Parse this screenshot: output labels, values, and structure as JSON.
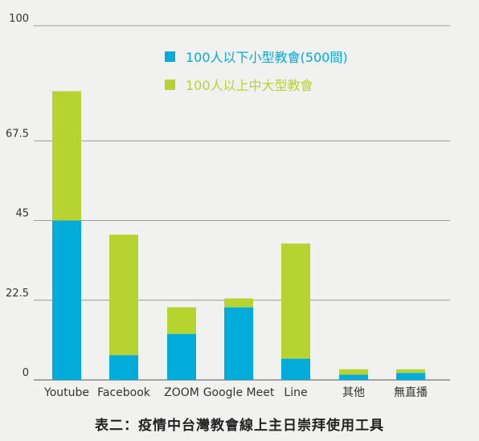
{
  "caption": "表二：疫情中台灣教會線上主日崇拜使用工具",
  "chart_data": {
    "type": "bar",
    "stacked": true,
    "categories": [
      "Youtube",
      "Facebook",
      "ZOOM",
      "Google Meet",
      "Line",
      "其他",
      "無直播"
    ],
    "ylim": [
      0,
      100
    ],
    "yticks": [
      "0",
      "22.5",
      "45",
      "67.5",
      "100"
    ],
    "grid": true,
    "legend_position": "top-center",
    "series": [
      {
        "name": "100人以下小型教會(500間)",
        "color": "#00acd9",
        "values": [
          45,
          7,
          13,
          20.5,
          6,
          1.5,
          2
        ]
      },
      {
        "name": "100人以上中大型教會",
        "color": "#b6d330",
        "values": [
          36.5,
          34,
          7.5,
          2.5,
          32.5,
          1.5,
          1
        ]
      }
    ]
  }
}
